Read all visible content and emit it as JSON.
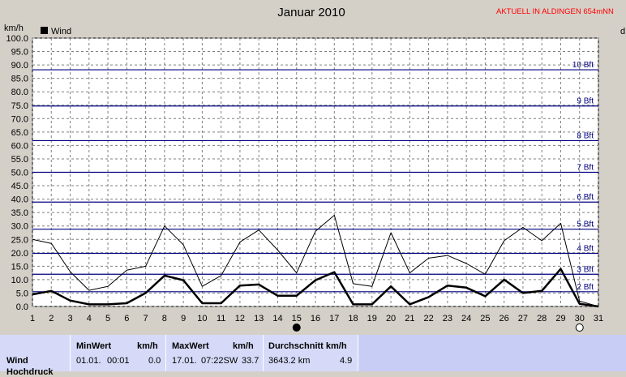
{
  "header": {
    "status": "AKTUELL IN ALDINGEN 654mNN",
    "right_label": "d"
  },
  "chart_data": {
    "type": "line",
    "title": "Januar 2010",
    "ylabel": "km/h",
    "ylim": [
      0,
      100
    ],
    "y_ticks": [
      "0.0",
      "5.0",
      "10.0",
      "15.0",
      "20.0",
      "25.0",
      "30.0",
      "35.0",
      "40.0",
      "45.0",
      "50.0",
      "55.0",
      "60.0",
      "65.0",
      "70.0",
      "75.0",
      "80.0",
      "85.0",
      "90.0",
      "95.0",
      "100.0"
    ],
    "x": [
      1,
      2,
      3,
      4,
      5,
      6,
      7,
      8,
      9,
      10,
      11,
      12,
      13,
      14,
      15,
      16,
      17,
      18,
      19,
      20,
      21,
      22,
      23,
      24,
      25,
      26,
      27,
      28,
      29,
      30,
      31
    ],
    "legend": [
      "Wind"
    ],
    "grid": true,
    "beaufort_lines": [
      {
        "label": "2 Bft",
        "value": 5.5
      },
      {
        "label": "3 Bft",
        "value": 12
      },
      {
        "label": "4 Bft",
        "value": 19.8
      },
      {
        "label": "5 Bft",
        "value": 28.8
      },
      {
        "label": "6 Bft",
        "value": 38.9
      },
      {
        "label": "7 Bft",
        "value": 50
      },
      {
        "label": "8 Bft",
        "value": 61.8
      },
      {
        "label": "9 Bft",
        "value": 74.7
      },
      {
        "label": "10 Bft",
        "value": 88.2
      }
    ],
    "series": [
      {
        "name": "Wind",
        "style": "thick",
        "color": "#000000",
        "values": [
          4.5,
          5.8,
          2.2,
          0.8,
          0.8,
          1.2,
          5,
          11.5,
          9.8,
          1.2,
          1.2,
          7.8,
          8.2,
          4,
          4,
          9.8,
          12.8,
          0.8,
          0.8,
          7.5,
          0.8,
          3.5,
          7.8,
          7,
          3.8,
          10,
          5,
          5.8,
          14,
          1,
          0
        ]
      },
      {
        "style": "thin",
        "color": "#000000",
        "values": [
          25,
          23.5,
          13,
          6,
          7.5,
          13.5,
          15,
          30,
          23,
          7.5,
          11.5,
          24,
          28.5,
          21,
          12.5,
          28,
          34,
          8.5,
          7.5,
          27.5,
          12.5,
          18,
          19,
          16,
          12,
          24.5,
          29.5,
          24.5,
          31,
          2,
          0
        ]
      }
    ],
    "moon_markers": [
      {
        "day": 15,
        "phase": "new-moon"
      },
      {
        "day": 30,
        "phase": "full-moon"
      }
    ]
  },
  "stats": {
    "row_label": "Wind",
    "row_label2": "Hochdruck",
    "min_header": "MinWert",
    "min_unit": "km/h",
    "min_date": "01.01.",
    "min_time": "00:01",
    "min_value": "0.0",
    "max_header": "MaxWert",
    "max_unit": "km/h",
    "max_date": "17.01.",
    "max_time": "07:22SW",
    "max_value": "33.7",
    "avg_header": "Durchschnitt km/h",
    "avg_distance": "3643.2 km",
    "avg_value": "4.9"
  },
  "colors": {
    "plot_bg": "#ffffff",
    "grid": "#7f7f7f",
    "beaufort": "#000080",
    "status": "#ff0000",
    "panel": "#c8cdf5"
  }
}
